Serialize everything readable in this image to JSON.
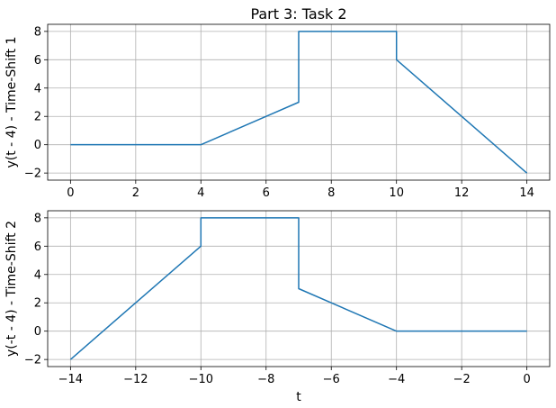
{
  "chart_data": [
    {
      "type": "line",
      "title": "Part 3: Task 2",
      "xlabel": "",
      "ylabel": "y(t - 4) - Time-Shift 1",
      "xlim": [
        -0.7,
        14.7
      ],
      "ylim": [
        -2.5,
        8.5
      ],
      "xticks": [
        0,
        2,
        4,
        6,
        8,
        10,
        12,
        14
      ],
      "yticks": [
        -2,
        0,
        2,
        4,
        6,
        8
      ],
      "xtick_labels": [
        "0",
        "2",
        "4",
        "6",
        "8",
        "10",
        "12",
        "14"
      ],
      "ytick_labels": [
        "−2",
        "0",
        "2",
        "4",
        "6",
        "8"
      ],
      "grid": true,
      "series": [
        {
          "color": "#1f77b4",
          "x": [
            0,
            4,
            7,
            7,
            10,
            10,
            14
          ],
          "y": [
            0,
            0,
            3,
            8,
            8,
            6,
            -2
          ]
        }
      ]
    },
    {
      "type": "line",
      "title": "",
      "xlabel": "t",
      "ylabel": "y(-t - 4) - Time-Shift 2",
      "xlim": [
        -14.7,
        0.7
      ],
      "ylim": [
        -2.5,
        8.5
      ],
      "xticks": [
        -14,
        -12,
        -10,
        -8,
        -6,
        -4,
        -2,
        0
      ],
      "yticks": [
        -2,
        0,
        2,
        4,
        6,
        8
      ],
      "xtick_labels": [
        "−14",
        "−12",
        "−10",
        "−8",
        "−6",
        "−4",
        "−2",
        "0"
      ],
      "ytick_labels": [
        "−2",
        "0",
        "2",
        "4",
        "6",
        "8"
      ],
      "grid": true,
      "series": [
        {
          "color": "#1f77b4",
          "x": [
            -14,
            -10,
            -10,
            -7,
            -7,
            -4,
            0
          ],
          "y": [
            -2,
            6,
            8,
            8,
            3,
            0,
            0
          ]
        }
      ]
    }
  ]
}
